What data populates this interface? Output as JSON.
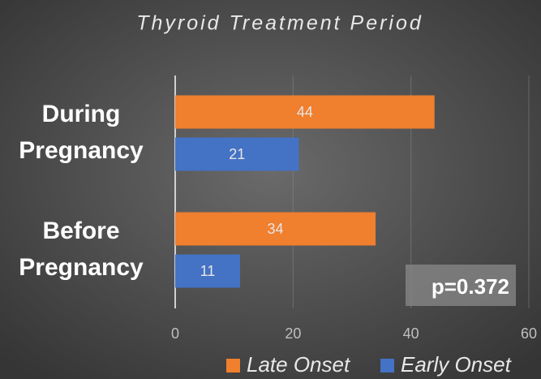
{
  "chart_data": {
    "type": "bar",
    "orientation": "horizontal",
    "title": "Thyroid Treatment Period",
    "categories": [
      "During Pregnancy",
      "Before Pregnancy"
    ],
    "series": [
      {
        "name": "Late Onset",
        "color": "#f07f2e",
        "values": [
          44,
          34
        ]
      },
      {
        "name": "Early Onset",
        "color": "#4472c4",
        "values": [
          21,
          11
        ]
      }
    ],
    "xlim": [
      0,
      60
    ],
    "xticks": [
      0,
      20,
      40,
      60
    ],
    "grid": true,
    "annotation": "p=0.372",
    "legend": "bottom"
  }
}
